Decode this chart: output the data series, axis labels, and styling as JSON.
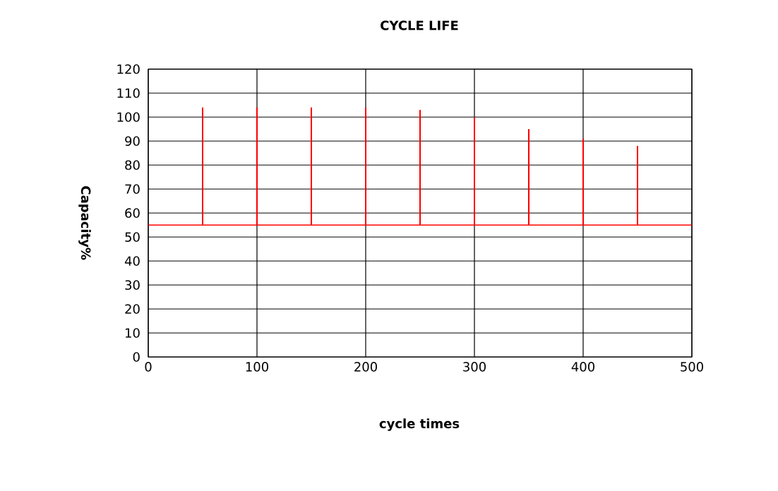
{
  "chart_data": {
    "type": "bar",
    "title": "CYCLE LIFE",
    "xlabel": "cycle times",
    "ylabel": "Capacity%",
    "x": [
      50,
      100,
      150,
      200,
      250,
      300,
      350,
      400,
      450
    ],
    "base": [
      55,
      55,
      55,
      55,
      55,
      55,
      55,
      55,
      55
    ],
    "values": [
      49,
      49,
      49,
      49,
      48,
      45,
      40,
      36,
      33
    ],
    "color": "#ff0000",
    "ref_lines": [
      {
        "axis": "y",
        "value": 55,
        "color": "#ff0000"
      }
    ],
    "xlim": [
      0,
      500
    ],
    "xticks": [
      0,
      100,
      200,
      300,
      400,
      500
    ],
    "ylim": [
      0,
      120
    ],
    "yticks": [
      0,
      10,
      20,
      30,
      40,
      50,
      60,
      70,
      80,
      90,
      100,
      110,
      120
    ],
    "grid": true
  }
}
